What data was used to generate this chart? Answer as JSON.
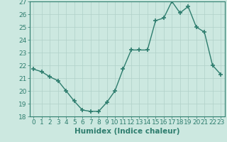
{
  "x": [
    0,
    1,
    2,
    3,
    4,
    5,
    6,
    7,
    8,
    9,
    10,
    11,
    12,
    13,
    14,
    15,
    16,
    17,
    18,
    19,
    20,
    21,
    22,
    23
  ],
  "y": [
    21.7,
    21.5,
    21.1,
    20.8,
    20.0,
    19.2,
    18.5,
    18.4,
    18.4,
    19.1,
    20.0,
    21.7,
    23.2,
    23.2,
    23.2,
    25.5,
    25.7,
    27.0,
    26.1,
    26.6,
    25.0,
    24.6,
    22.0,
    21.3
  ],
  "line_color": "#2e7d6e",
  "marker": "+",
  "marker_size": 4,
  "bg_color": "#cce8e0",
  "grid_color": "#b0d0c8",
  "tick_color": "#2e7d6e",
  "xlabel": "Humidex (Indice chaleur)",
  "ylim": [
    18,
    27
  ],
  "xlim": [
    -0.5,
    23.5
  ],
  "yticks": [
    18,
    19,
    20,
    21,
    22,
    23,
    24,
    25,
    26,
    27
  ],
  "xticks": [
    0,
    1,
    2,
    3,
    4,
    5,
    6,
    7,
    8,
    9,
    10,
    11,
    12,
    13,
    14,
    15,
    16,
    17,
    18,
    19,
    20,
    21,
    22,
    23
  ],
  "xlabel_fontsize": 7.5,
  "tick_fontsize": 6.5
}
